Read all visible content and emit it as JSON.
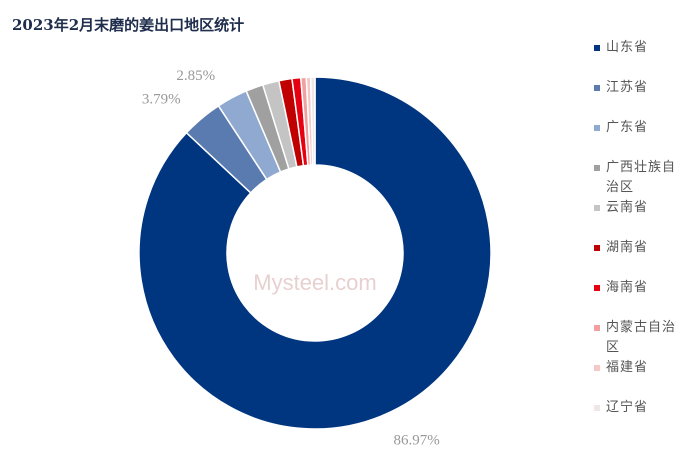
{
  "chart_data": {
    "type": "donut",
    "title": "2023年2月末磨的姜出口地区统计",
    "watermark": "Mysteel.com",
    "categories": [
      "山东省",
      "江苏省",
      "广东省",
      "广西壮族自治区",
      "云南省",
      "湖南省",
      "海南省",
      "内蒙古自治区",
      "福建省",
      "辽宁省"
    ],
    "values": [
      86.97,
      3.79,
      2.85,
      1.6,
      1.5,
      1.2,
      0.8,
      0.5,
      0.4,
      0.39
    ],
    "value_labels": [
      "86.97%",
      "3.79%",
      "2.85%",
      null,
      null,
      null,
      null,
      null,
      null,
      null
    ],
    "colors": [
      "#003580",
      "#5a7bb0",
      "#8fa9d1",
      "#a0a0a0",
      "#c4c4c4",
      "#c00000",
      "#e60012",
      "#f0a0a0",
      "#f5c8c8",
      "#efe6e6"
    ],
    "legend": "right"
  }
}
